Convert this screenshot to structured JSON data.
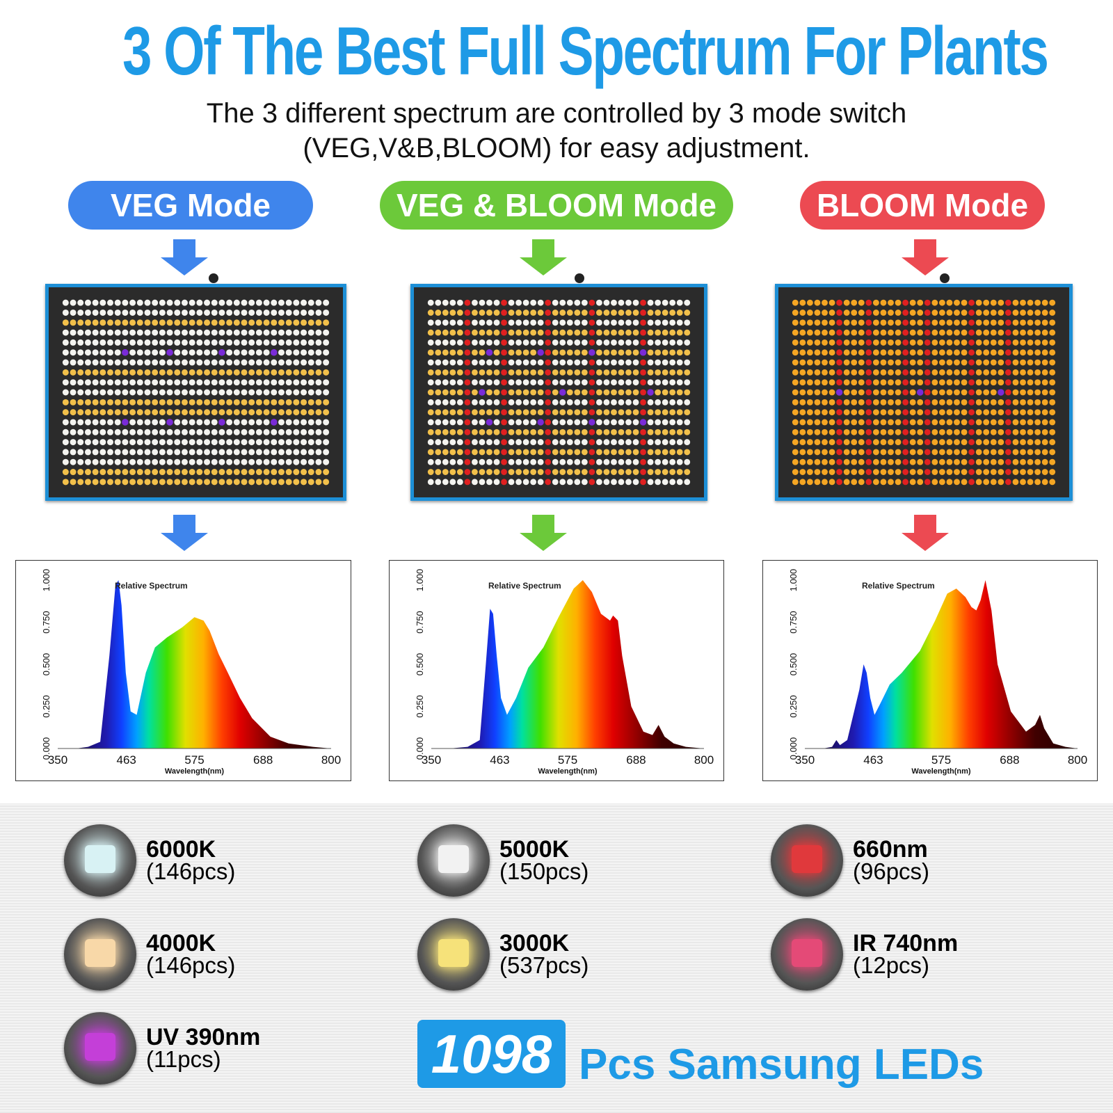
{
  "title": "3 Of The Best Full Spectrum For Plants",
  "subtitle_line1": "The 3 different spectrum are controlled by 3 mode switch",
  "subtitle_line2": "(VEG,V&B,BLOOM) for easy adjustment.",
  "modes": [
    {
      "label": "VEG Mode",
      "color": "#3f85ec"
    },
    {
      "label": "VEG & BLOOM Mode",
      "color": "#6cc93a"
    },
    {
      "label": "BLOOM Mode",
      "color": "#ec4a52"
    }
  ],
  "chart_data": [
    {
      "type": "area",
      "title": "Relative Spectrum",
      "xlabel": "Wavelength(nm)",
      "ylabel": "",
      "xlim": [
        350,
        800
      ],
      "ylim": [
        0,
        1
      ],
      "x_ticks": [
        "350",
        "463",
        "575",
        "688",
        "800"
      ],
      "y_ticks": [
        "0.000",
        "0.250",
        "0.500",
        "0.750",
        "1.000"
      ],
      "series": [
        {
          "x": [
            380,
            400,
            420,
            435,
            445,
            450,
            455,
            462,
            470,
            480,
            495,
            510,
            530,
            555,
            575,
            590,
            600,
            615,
            630,
            650,
            670,
            700,
            730,
            770,
            800
          ],
          "y": [
            0,
            0.01,
            0.04,
            0.55,
            0.97,
            1.0,
            0.85,
            0.45,
            0.22,
            0.2,
            0.45,
            0.6,
            0.66,
            0.72,
            0.78,
            0.76,
            0.7,
            0.56,
            0.45,
            0.3,
            0.18,
            0.07,
            0.03,
            0.01,
            0
          ]
        }
      ]
    },
    {
      "type": "area",
      "title": "Relative Spectrum",
      "xlabel": "Wavelength(nm)",
      "ylabel": "",
      "xlim": [
        350,
        800
      ],
      "ylim": [
        0,
        1
      ],
      "x_ticks": [
        "350",
        "463",
        "575",
        "688",
        "800"
      ],
      "y_ticks": [
        "0.000",
        "0.250",
        "0.500",
        "0.750",
        "1.000"
      ],
      "series": [
        {
          "x": [
            380,
            410,
            430,
            440,
            447,
            452,
            458,
            465,
            475,
            490,
            510,
            535,
            560,
            585,
            600,
            615,
            630,
            645,
            650,
            658,
            665,
            680,
            700,
            715,
            725,
            735,
            750,
            770,
            800
          ],
          "y": [
            0,
            0.01,
            0.05,
            0.5,
            0.83,
            0.8,
            0.55,
            0.3,
            0.2,
            0.3,
            0.48,
            0.6,
            0.78,
            0.95,
            1.0,
            0.93,
            0.8,
            0.76,
            0.79,
            0.76,
            0.55,
            0.25,
            0.1,
            0.08,
            0.14,
            0.07,
            0.03,
            0.01,
            0
          ]
        }
      ]
    },
    {
      "type": "area",
      "title": "Relative Spectrum",
      "xlabel": "Wavelength(nm)",
      "ylabel": "",
      "xlim": [
        350,
        800
      ],
      "ylim": [
        0,
        1
      ],
      "x_ticks": [
        "350",
        "463",
        "575",
        "688",
        "800"
      ],
      "y_ticks": [
        "0.000",
        "0.250",
        "0.500",
        "0.750",
        "1.000"
      ],
      "series": [
        {
          "x": [
            380,
            395,
            402,
            408,
            420,
            440,
            447,
            452,
            458,
            465,
            475,
            490,
            510,
            540,
            565,
            585,
            600,
            615,
            625,
            633,
            640,
            648,
            658,
            668,
            690,
            715,
            730,
            738,
            745,
            760,
            780,
            800
          ],
          "y": [
            0,
            0.01,
            0.05,
            0.02,
            0.05,
            0.35,
            0.5,
            0.45,
            0.3,
            0.2,
            0.27,
            0.38,
            0.45,
            0.58,
            0.76,
            0.92,
            0.95,
            0.9,
            0.84,
            0.82,
            0.88,
            1.0,
            0.82,
            0.5,
            0.22,
            0.1,
            0.14,
            0.2,
            0.12,
            0.03,
            0.01,
            0
          ]
        }
      ]
    }
  ],
  "leds": [
    {
      "name": "6000K",
      "pcs": "(146pcs)",
      "icon": "cool-white-led-icon",
      "color": "#d8f2f4"
    },
    {
      "name": "5000K",
      "pcs": "(150pcs)",
      "icon": "white-led-icon",
      "color": "#f2f2f2"
    },
    {
      "name": "660nm",
      "pcs": "(96pcs)",
      "icon": "red-led-icon",
      "color": "#e0393c"
    },
    {
      "name": "4000K",
      "pcs": "(146pcs)",
      "icon": "neutral-white-led-icon",
      "color": "#f8d8a8"
    },
    {
      "name": "3000K",
      "pcs": "(537pcs)",
      "icon": "warm-white-led-icon",
      "color": "#f6e27a"
    },
    {
      "name": "IR 740nm",
      "pcs": "(12pcs)",
      "icon": "ir-led-icon",
      "color": "#e44a77"
    },
    {
      "name": "UV 390nm",
      "pcs": "(11pcs)",
      "icon": "uv-led-icon",
      "color": "#c43fd8"
    }
  ],
  "total_count": "1098",
  "total_label": "Pcs Samsung LEDs"
}
